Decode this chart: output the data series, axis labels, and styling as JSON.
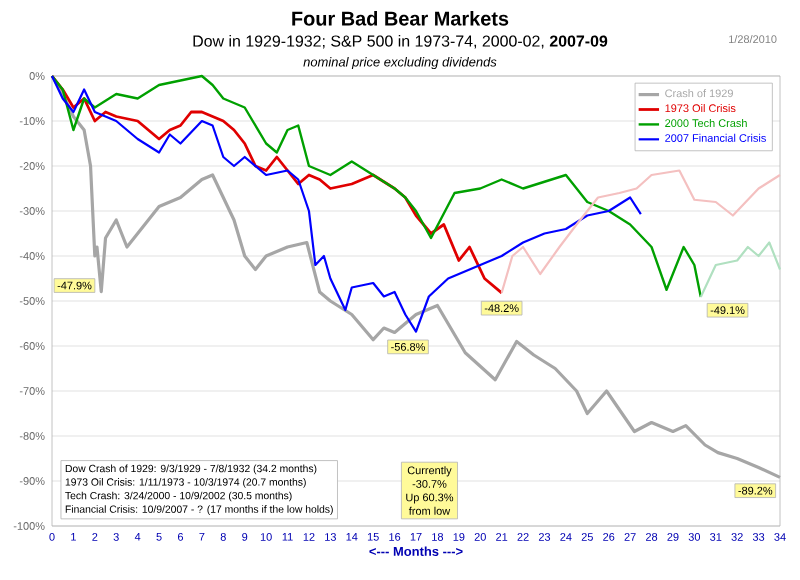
{
  "chart_data": {
    "type": "line",
    "title": "Four Bad Bear Markets",
    "subtitle": "Dow in 1929-1932; S&P 500 in 1973-74, 2000-02, **2007-09**",
    "xlabel": "<--- Months --->",
    "xlim": [
      0,
      34
    ],
    "xticks": [
      0,
      1,
      2,
      3,
      4,
      5,
      6,
      7,
      8,
      9,
      10,
      11,
      12,
      13,
      14,
      15,
      16,
      17,
      18,
      19,
      20,
      21,
      22,
      23,
      24,
      25,
      26,
      27,
      28,
      29,
      30,
      31,
      32,
      33,
      34
    ],
    "ylim": [
      -100,
      0
    ],
    "yticks": [
      {
        "value": 0,
        "label": "0%"
      },
      {
        "value": -10,
        "label": "-10%"
      },
      {
        "value": -20,
        "label": "-20%"
      },
      {
        "value": -30,
        "label": "-30%"
      },
      {
        "value": -40,
        "label": "-40%"
      },
      {
        "value": -50,
        "label": "-50%"
      },
      {
        "value": -60,
        "label": "-60%"
      },
      {
        "value": -70,
        "label": "-70%"
      },
      {
        "value": -80,
        "label": "-80%"
      },
      {
        "value": -90,
        "label": "-90%"
      },
      {
        "value": -100,
        "label": "-100%"
      }
    ],
    "grid": "y",
    "legend": "top right",
    "series": [
      {
        "name": "Crash of 1929",
        "color": "#a6a6a6",
        "x": [
          0,
          0.5,
          1,
          1.5,
          1.8,
          2,
          2.1,
          2.3,
          2.5,
          3,
          3.5,
          4,
          5,
          6,
          7,
          7.5,
          7.9,
          8.5,
          9,
          9.5,
          10,
          11,
          11.9,
          12.5,
          13,
          14,
          15,
          15.5,
          16,
          17,
          18,
          19.3,
          20.7,
          21.7,
          22.5,
          23.5,
          24.5,
          25,
          25.9,
          27.2,
          28,
          29,
          29.6,
          30.5,
          31.1,
          32,
          33,
          34
        ],
        "values": [
          0,
          -4,
          -9,
          -12,
          -20,
          -40,
          -38,
          -47.9,
          -36,
          -32,
          -38,
          -35,
          -29,
          -27,
          -23,
          -22,
          -26,
          -32,
          -40,
          -43,
          -40,
          -38,
          -37,
          -48,
          -50,
          -53,
          -58.6,
          -56,
          -57,
          -53,
          -51,
          -61.5,
          -67.5,
          -59,
          -62,
          -65,
          -70,
          -75,
          -70,
          -79,
          -77,
          -79,
          -77.7,
          -82,
          -83.7,
          -85,
          -87,
          -89.2
        ]
      },
      {
        "name": "1973 Oil Crisis",
        "color": "#e00000",
        "x": [
          0,
          0.5,
          1,
          1.5,
          2,
          2.5,
          3,
          4,
          5,
          5.5,
          6,
          6.5,
          7,
          7.5,
          8,
          8.5,
          9,
          9.5,
          10,
          10.5,
          11,
          11.5,
          12,
          12.5,
          13,
          14,
          15,
          16,
          16.5,
          17,
          17.7,
          18.3,
          19,
          19.5,
          20.2,
          21
        ],
        "values": [
          0,
          -3,
          -7,
          -5,
          -10,
          -8,
          -9,
          -10,
          -14,
          -12,
          -11,
          -8,
          -8,
          -9,
          -10,
          -12,
          -15,
          -20,
          -21,
          -18,
          -21,
          -24,
          -22,
          -23,
          -25,
          -24,
          -22,
          -25,
          -27,
          -31,
          -35,
          -33,
          -41,
          -38,
          -45,
          -48.2
        ]
      },
      {
        "name": "2000 Tech Crash",
        "color": "#00a000",
        "x": [
          0,
          0.5,
          1,
          1.5,
          2,
          3,
          4,
          5,
          6,
          7,
          7.5,
          8,
          9,
          10,
          10.5,
          11,
          11.5,
          12,
          13,
          14,
          15,
          16,
          16.5,
          17,
          17.7,
          18.8,
          20,
          21,
          22,
          24,
          25,
          26,
          27,
          28,
          28.7,
          29.5,
          30,
          30.3
        ],
        "values": [
          0,
          -3,
          -12,
          -5,
          -7,
          -4,
          -5,
          -2,
          -1,
          0,
          -2,
          -5,
          -7,
          -15,
          -17,
          -12,
          -11,
          -20,
          -22,
          -19,
          -22,
          -25,
          -27,
          -30,
          -36,
          -26,
          -25,
          -23,
          -25,
          -22,
          -28,
          -30,
          -33,
          -38,
          -47.5,
          -38,
          -42,
          -49.1
        ]
      },
      {
        "name": "2007 Financial Crisis",
        "color": "#0000ff",
        "x": [
          0,
          0.5,
          1,
          1.5,
          2,
          3,
          4,
          5,
          5.5,
          6,
          7,
          7.5,
          8,
          8.5,
          9,
          9.5,
          10,
          11,
          11.5,
          12,
          12.3,
          12.7,
          13,
          13.7,
          14,
          15,
          15.5,
          16,
          16.5,
          17,
          17.6,
          18.5,
          20,
          21,
          22,
          23,
          24,
          25,
          26,
          27,
          27.5
        ],
        "values": [
          0,
          -5,
          -8,
          -3,
          -8,
          -10,
          -14,
          -17,
          -13,
          -15,
          -10,
          -11,
          -18,
          -20,
          -18,
          -20,
          -22,
          -21,
          -23,
          -30,
          -42,
          -40,
          -45,
          -52,
          -47,
          -46,
          -49,
          -48,
          -53,
          -56.8,
          -49,
          -45,
          -42,
          -40,
          -37,
          -35,
          -34,
          -31,
          -30,
          -27,
          -30.7
        ]
      },
      {
        "color": "#f4c0c0",
        "x": [
          21,
          21.5,
          22,
          22.8,
          23.7,
          24.5,
          25.5,
          26.5,
          27.3,
          28,
          29.3,
          30,
          31,
          31.8,
          33,
          34
        ],
        "values": [
          -48.2,
          -40,
          -38,
          -44,
          -38,
          -33,
          -27,
          -26,
          -25,
          -22,
          -21,
          -27.5,
          -28,
          -31,
          -25,
          -22
        ]
      },
      {
        "color": "#b0e0c0",
        "x": [
          30.3,
          31,
          32,
          32.5,
          33,
          33.5,
          34
        ],
        "values": [
          -49.1,
          -42,
          -41,
          -38,
          -40,
          -37,
          -43
        ]
      }
    ],
    "annotations": [
      "1/28/2010",
      "nominal price excluding dividends",
      "Dow Crash of 1929: 9/3/1929 - 7/8/1932 (34.2 months)",
      "1973 Oil Crisis: 1/11/1973 - 10/3/1974 (20.7 months)",
      "Tech Crash: 3/24/2000 - 10/9/2002 (30.5 months)",
      "Financial Crisis: 10/9/2007 - ? (17 months if the low holds)",
      "Currently",
      "-30.7%",
      "Up 60.3%",
      "from low",
      {
        "text": "-47.9%",
        "x": 2.3,
        "y": -47.9
      },
      {
        "text": "-56.8%",
        "x": 17,
        "y": -56.8
      },
      {
        "text": "-48.2%",
        "x": 21,
        "y": -48.2
      },
      {
        "text": "-49.1%",
        "x": 30.3,
        "y": -49.1
      },
      {
        "text": "-89.2%",
        "x": 34,
        "y": -89.2
      }
    ]
  }
}
